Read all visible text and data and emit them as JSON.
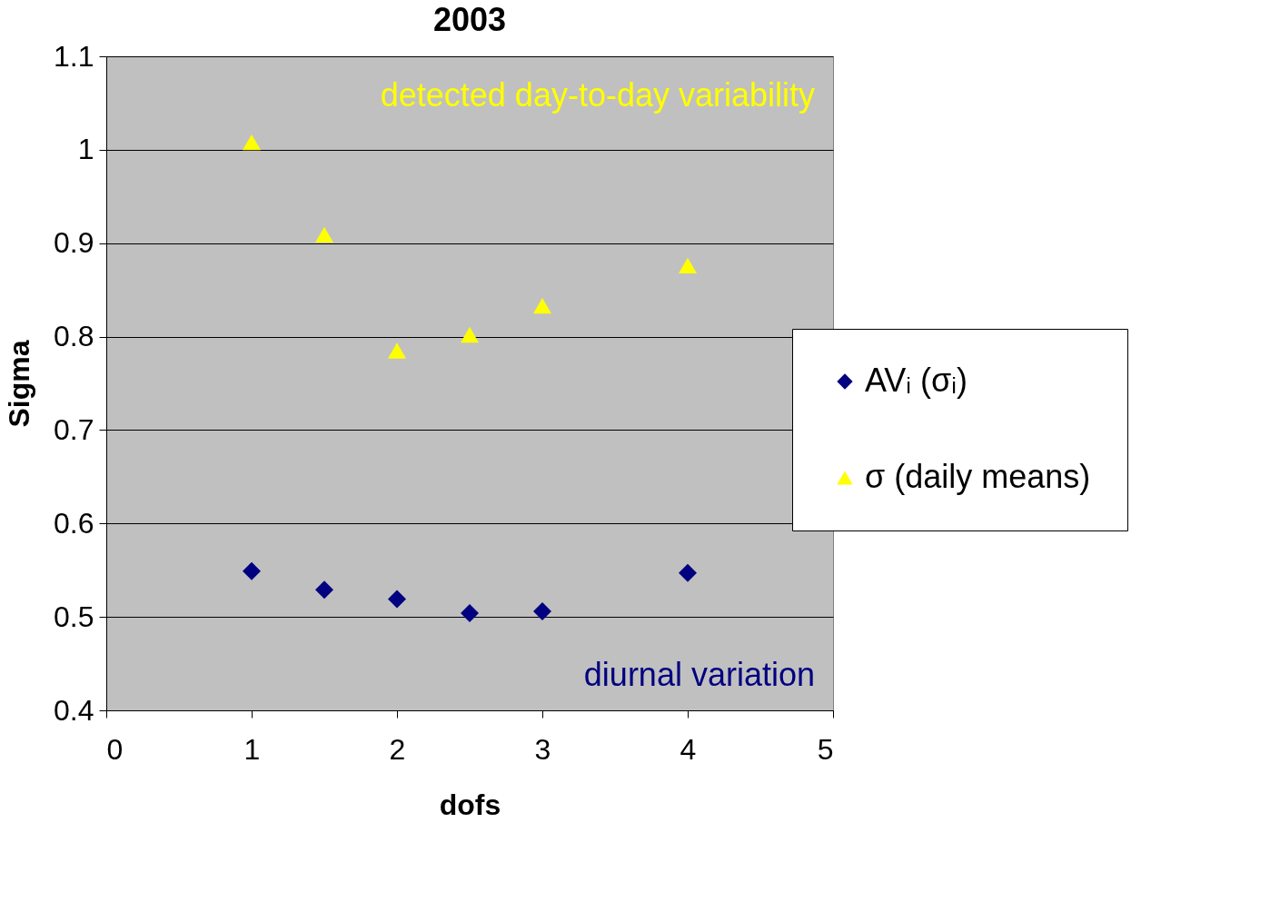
{
  "chart_data": {
    "type": "scatter",
    "title": "2003",
    "xlabel": "dofs",
    "ylabel": "Sigma",
    "x": [
      1,
      1.5,
      2,
      2.5,
      3,
      4
    ],
    "series": [
      {
        "name": "AVᵢ (σᵢ)",
        "color": "#000080",
        "marker": "diamond",
        "values": [
          0.549,
          0.529,
          0.519,
          0.504,
          0.506,
          0.547
        ]
      },
      {
        "name": "σ (daily means)",
        "color": "#ffff00",
        "marker": "triangle",
        "values": [
          1.008,
          0.909,
          0.785,
          0.802,
          0.833,
          0.876
        ]
      }
    ],
    "annotations": [
      "detected day-to-day variability",
      "diurnal variation"
    ],
    "xlim": [
      0,
      5
    ],
    "xticks": [
      0,
      1,
      2,
      3,
      4,
      5
    ],
    "ylim": [
      0.4,
      1.1
    ],
    "yticks": [
      0.4,
      0.5,
      0.6,
      0.7,
      0.8,
      0.9,
      1,
      1.1
    ],
    "grid": "y",
    "legend": "right"
  }
}
